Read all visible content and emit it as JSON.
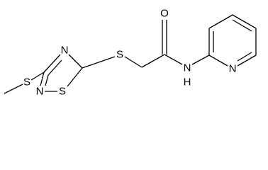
{
  "atoms": [
    {
      "label": "S"
    },
    {
      "label": "N"
    },
    {
      "label": "N"
    },
    {
      "label": "S"
    },
    {
      "label": "S"
    },
    {
      "label": "O"
    },
    {
      "label": "N"
    },
    {
      "label": "H"
    },
    {
      "label": "N"
    }
  ]
}
